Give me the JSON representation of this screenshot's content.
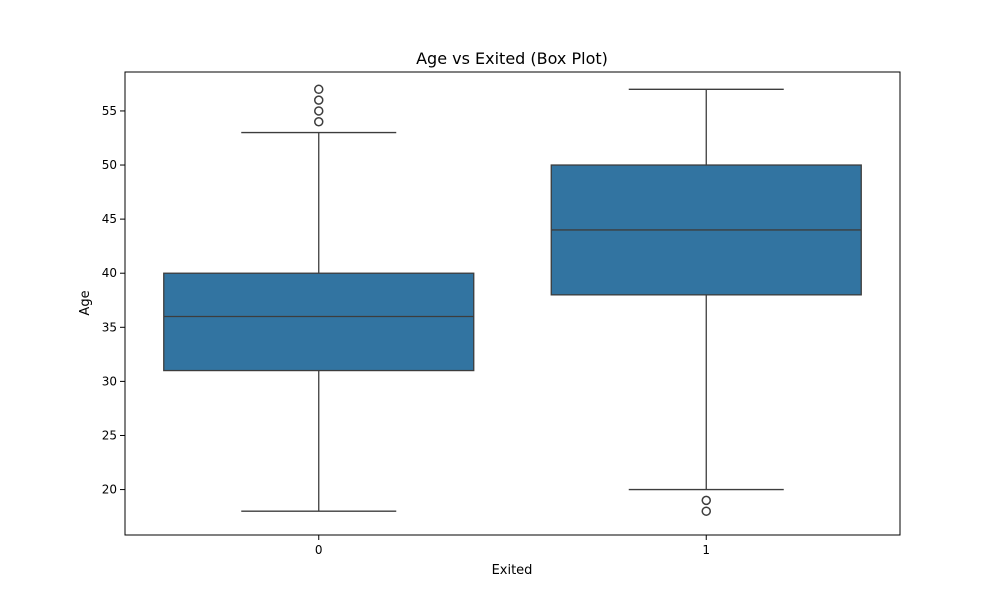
{
  "chart_data": {
    "type": "box",
    "title": "Age vs Exited (Box Plot)",
    "xlabel": "Exited",
    "ylabel": "Age",
    "categories": [
      "0",
      "1"
    ],
    "ylim": [
      15.8,
      58.6
    ],
    "yticks": [
      20,
      25,
      30,
      35,
      40,
      45,
      50,
      55
    ],
    "grid": false,
    "box_color": "#3274a1",
    "line_color": "#3d3d3d",
    "boxes": [
      {
        "category": "0",
        "whisker_low": 18,
        "q1": 31,
        "median": 36,
        "q3": 40,
        "whisker_high": 53,
        "outliers": [
          54,
          55,
          56,
          57
        ]
      },
      {
        "category": "1",
        "whisker_low": 20,
        "q1": 38,
        "median": 44,
        "q3": 50,
        "whisker_high": 57,
        "outliers": [
          18,
          19
        ]
      }
    ]
  }
}
